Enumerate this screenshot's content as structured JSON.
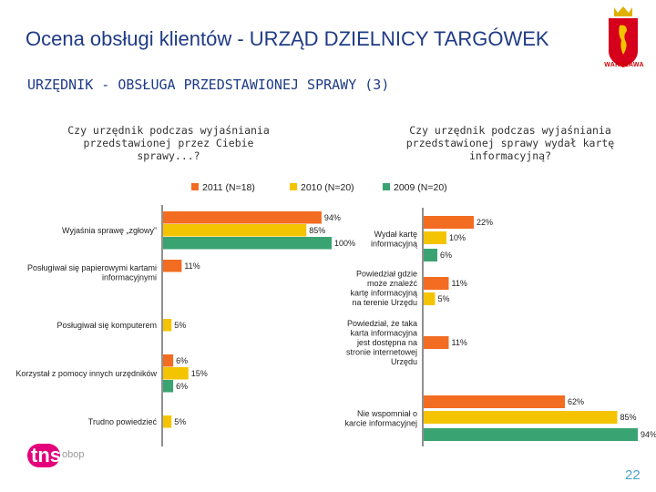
{
  "header": {
    "title": "Ocena obsługi klientów - URZĄD DZIELNICY TARGÓWEK",
    "subtitle": "URZĘDNIK - OBSŁUGA PRZEDSTAWIONEJ SPRAWY (3)",
    "crest_label": "WARSZAWA"
  },
  "footer": {
    "logo_main": "tns",
    "logo_sub": "obop",
    "page_number": "22"
  },
  "colors": {
    "s2011": "#f26c21",
    "s2010": "#f4c400",
    "s2009": "#3aa372",
    "title": "#1f3b86"
  },
  "chart_data": [
    {
      "type": "bar",
      "orientation": "horizontal",
      "title": "Czy urzędnik podczas wyjaśniania przedstawionej przez Ciebie sprawy...?",
      "xlim": [
        0,
        100
      ],
      "legend": [
        "2011 (N=18)",
        "2010 (N=20)",
        "2009 (N=20)"
      ],
      "categories": [
        [
          "Wyjaśnia sprawę „zgłowy”"
        ],
        [
          "Posługiwał się papierowymi kartami",
          "informacyjnymi"
        ],
        [
          "Posługiwał się komputerem"
        ],
        [
          "Korzystał z pomocy innych urzędników"
        ],
        [
          "Trudno powiedzieć"
        ]
      ],
      "series": [
        {
          "name": "2011 (N=18)",
          "values": [
            94,
            11,
            null,
            6,
            null
          ],
          "labels": [
            "94%",
            "11%",
            "",
            "6%",
            ""
          ]
        },
        {
          "name": "2010 (N=20)",
          "values": [
            85,
            null,
            5,
            15,
            5
          ],
          "labels": [
            "85%",
            "",
            "5%",
            "15%",
            "5%"
          ]
        },
        {
          "name": "2009 (N=20)",
          "values": [
            100,
            null,
            null,
            6,
            null
          ],
          "labels": [
            "100%",
            "",
            "",
            "6%",
            ""
          ]
        }
      ]
    },
    {
      "type": "bar",
      "orientation": "horizontal",
      "title": "Czy urzędnik podczas wyjaśniania przedstawionej sprawy wydał kartę informacyjną?",
      "xlim": [
        0,
        100
      ],
      "categories": [
        [
          "Wydał kartę",
          "informacyjną"
        ],
        [
          "Powiedział gdzie",
          "może znaleźć",
          "kartę informacyjną",
          "na terenie Urzędu"
        ],
        [
          "Powiedział, że taka",
          "karta informacyjna",
          "jest dostępna na",
          "stronie internetowej",
          "Urzędu"
        ],
        [
          "Nie wspomniał o",
          "karcie informacyjnej"
        ]
      ],
      "series": [
        {
          "name": "2011 (N=18)",
          "values": [
            22,
            11,
            11,
            62
          ],
          "labels": [
            "22%",
            "11%",
            "11%",
            "62%"
          ]
        },
        {
          "name": "2010 (N=20)",
          "values": [
            10,
            5,
            null,
            85
          ],
          "labels": [
            "10%",
            "5%",
            "",
            "85%"
          ]
        },
        {
          "name": "2009 (N=20)",
          "values": [
            6,
            null,
            null,
            94
          ],
          "labels": [
            "6%",
            "",
            "",
            "94%"
          ]
        }
      ]
    }
  ]
}
